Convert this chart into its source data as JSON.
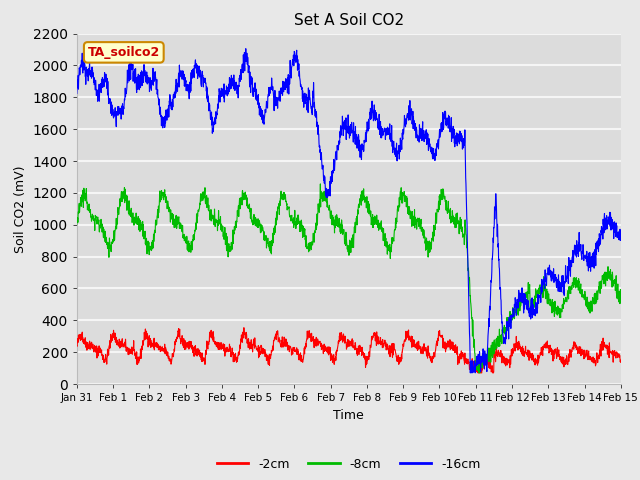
{
  "title": "Set A Soil CO2",
  "xlabel": "Time",
  "ylabel": "Soil CO2 (mV)",
  "ylim": [
    0,
    2200
  ],
  "xlim_days": [
    0,
    15
  ],
  "background_color": "#e8e8e8",
  "plot_background": "#dcdcdc",
  "grid_color": "#f5f5f5",
  "legend_entries": [
    "-2cm",
    "-8cm",
    "-16cm"
  ],
  "legend_colors": [
    "#ff0000",
    "#00bb00",
    "#0000ff"
  ],
  "box_label": "TA_soilco2",
  "box_facecolor": "#ffffcc",
  "box_edgecolor": "#cc8800",
  "tick_labels": [
    "Jan 31",
    "Feb 1",
    "Feb 2",
    "Feb 3",
    "Feb 4",
    "Feb 5",
    "Feb 6",
    "Feb 7",
    "Feb 8",
    "Feb 9",
    "Feb 10",
    "Feb 11",
    "Feb 12",
    "Feb 13",
    "Feb 14",
    "Feb 15"
  ],
  "tick_positions": [
    0,
    1,
    2,
    3,
    4,
    5,
    6,
    7,
    8,
    9,
    10,
    11,
    12,
    13,
    14,
    15
  ],
  "yticks": [
    0,
    200,
    400,
    600,
    800,
    1000,
    1200,
    1400,
    1600,
    1800,
    2000,
    2200
  ]
}
